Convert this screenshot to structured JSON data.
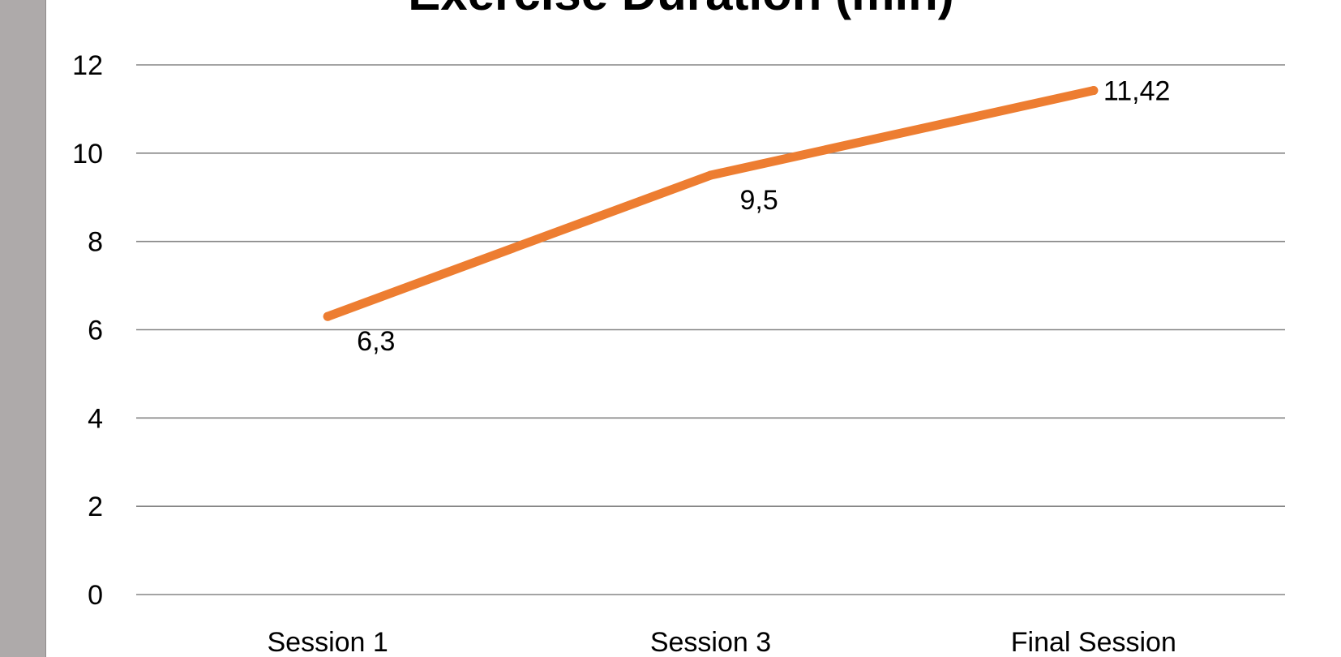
{
  "chart_data": {
    "type": "line",
    "title": "Exercise Duration (min)",
    "xlabel": "",
    "ylabel": "",
    "categories": [
      "Session 1",
      "Session 3",
      "Final Session"
    ],
    "series": [
      {
        "values": [
          6.3,
          9.5,
          11.42
        ],
        "data_labels": [
          "6,3",
          "9,5",
          "11,42"
        ],
        "color": "#ed7d31"
      }
    ],
    "ylim": [
      0,
      12
    ],
    "yticks": [
      0,
      2,
      4,
      6,
      8,
      10,
      12
    ],
    "ytick_labels": [
      "0",
      "2",
      "4",
      "6",
      "8",
      "10",
      "12"
    ],
    "grid": true,
    "legend": "none",
    "colors": {
      "gridline": "#868686",
      "background": "#ffffff",
      "surround": "#aeaaaa"
    }
  }
}
